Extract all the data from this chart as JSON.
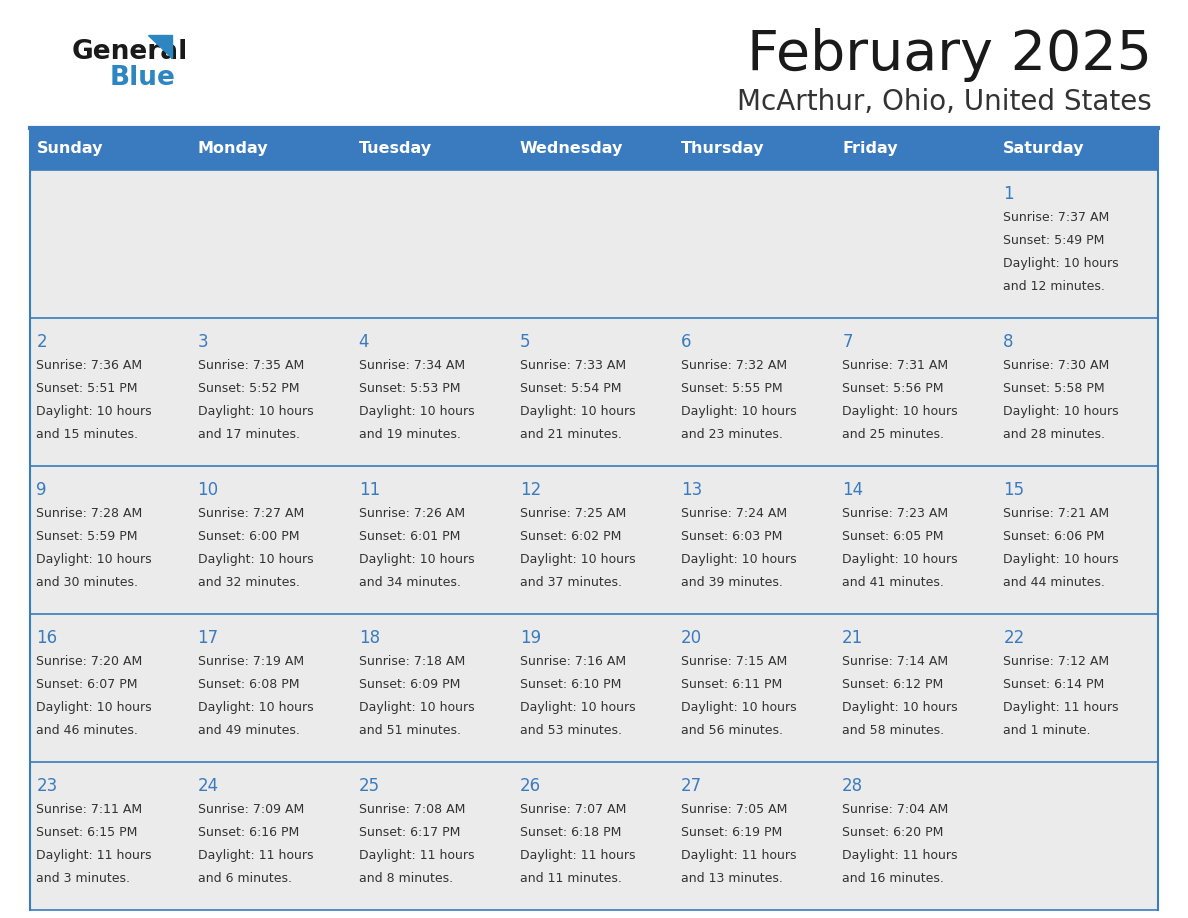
{
  "title": "February 2025",
  "subtitle": "McArthur, Ohio, United States",
  "header_color": "#3a7bbf",
  "header_text_color": "#ffffff",
  "cell_bg_color": "#ebebeb",
  "border_color": "#3a7bbf",
  "day_names": [
    "Sunday",
    "Monday",
    "Tuesday",
    "Wednesday",
    "Thursday",
    "Friday",
    "Saturday"
  ],
  "title_color": "#1a1a1a",
  "subtitle_color": "#333333",
  "day_num_color": "#3a7bbf",
  "cell_text_color": "#333333",
  "logo_general_color": "#1a1a1a",
  "logo_blue_color": "#2e86c1",
  "weeks": [
    [
      null,
      null,
      null,
      null,
      null,
      null,
      {
        "day": "1",
        "sunrise": "7:37 AM",
        "sunset": "5:49 PM",
        "dl1": "Daylight: 10 hours",
        "dl2": "and 12 minutes."
      }
    ],
    [
      {
        "day": "2",
        "sunrise": "7:36 AM",
        "sunset": "5:51 PM",
        "dl1": "Daylight: 10 hours",
        "dl2": "and 15 minutes."
      },
      {
        "day": "3",
        "sunrise": "7:35 AM",
        "sunset": "5:52 PM",
        "dl1": "Daylight: 10 hours",
        "dl2": "and 17 minutes."
      },
      {
        "day": "4",
        "sunrise": "7:34 AM",
        "sunset": "5:53 PM",
        "dl1": "Daylight: 10 hours",
        "dl2": "and 19 minutes."
      },
      {
        "day": "5",
        "sunrise": "7:33 AM",
        "sunset": "5:54 PM",
        "dl1": "Daylight: 10 hours",
        "dl2": "and 21 minutes."
      },
      {
        "day": "6",
        "sunrise": "7:32 AM",
        "sunset": "5:55 PM",
        "dl1": "Daylight: 10 hours",
        "dl2": "and 23 minutes."
      },
      {
        "day": "7",
        "sunrise": "7:31 AM",
        "sunset": "5:56 PM",
        "dl1": "Daylight: 10 hours",
        "dl2": "and 25 minutes."
      },
      {
        "day": "8",
        "sunrise": "7:30 AM",
        "sunset": "5:58 PM",
        "dl1": "Daylight: 10 hours",
        "dl2": "and 28 minutes."
      }
    ],
    [
      {
        "day": "9",
        "sunrise": "7:28 AM",
        "sunset": "5:59 PM",
        "dl1": "Daylight: 10 hours",
        "dl2": "and 30 minutes."
      },
      {
        "day": "10",
        "sunrise": "7:27 AM",
        "sunset": "6:00 PM",
        "dl1": "Daylight: 10 hours",
        "dl2": "and 32 minutes."
      },
      {
        "day": "11",
        "sunrise": "7:26 AM",
        "sunset": "6:01 PM",
        "dl1": "Daylight: 10 hours",
        "dl2": "and 34 minutes."
      },
      {
        "day": "12",
        "sunrise": "7:25 AM",
        "sunset": "6:02 PM",
        "dl1": "Daylight: 10 hours",
        "dl2": "and 37 minutes."
      },
      {
        "day": "13",
        "sunrise": "7:24 AM",
        "sunset": "6:03 PM",
        "dl1": "Daylight: 10 hours",
        "dl2": "and 39 minutes."
      },
      {
        "day": "14",
        "sunrise": "7:23 AM",
        "sunset": "6:05 PM",
        "dl1": "Daylight: 10 hours",
        "dl2": "and 41 minutes."
      },
      {
        "day": "15",
        "sunrise": "7:21 AM",
        "sunset": "6:06 PM",
        "dl1": "Daylight: 10 hours",
        "dl2": "and 44 minutes."
      }
    ],
    [
      {
        "day": "16",
        "sunrise": "7:20 AM",
        "sunset": "6:07 PM",
        "dl1": "Daylight: 10 hours",
        "dl2": "and 46 minutes."
      },
      {
        "day": "17",
        "sunrise": "7:19 AM",
        "sunset": "6:08 PM",
        "dl1": "Daylight: 10 hours",
        "dl2": "and 49 minutes."
      },
      {
        "day": "18",
        "sunrise": "7:18 AM",
        "sunset": "6:09 PM",
        "dl1": "Daylight: 10 hours",
        "dl2": "and 51 minutes."
      },
      {
        "day": "19",
        "sunrise": "7:16 AM",
        "sunset": "6:10 PM",
        "dl1": "Daylight: 10 hours",
        "dl2": "and 53 minutes."
      },
      {
        "day": "20",
        "sunrise": "7:15 AM",
        "sunset": "6:11 PM",
        "dl1": "Daylight: 10 hours",
        "dl2": "and 56 minutes."
      },
      {
        "day": "21",
        "sunrise": "7:14 AM",
        "sunset": "6:12 PM",
        "dl1": "Daylight: 10 hours",
        "dl2": "and 58 minutes."
      },
      {
        "day": "22",
        "sunrise": "7:12 AM",
        "sunset": "6:14 PM",
        "dl1": "Daylight: 11 hours",
        "dl2": "and 1 minute."
      }
    ],
    [
      {
        "day": "23",
        "sunrise": "7:11 AM",
        "sunset": "6:15 PM",
        "dl1": "Daylight: 11 hours",
        "dl2": "and 3 minutes."
      },
      {
        "day": "24",
        "sunrise": "7:09 AM",
        "sunset": "6:16 PM",
        "dl1": "Daylight: 11 hours",
        "dl2": "and 6 minutes."
      },
      {
        "day": "25",
        "sunrise": "7:08 AM",
        "sunset": "6:17 PM",
        "dl1": "Daylight: 11 hours",
        "dl2": "and 8 minutes."
      },
      {
        "day": "26",
        "sunrise": "7:07 AM",
        "sunset": "6:18 PM",
        "dl1": "Daylight: 11 hours",
        "dl2": "and 11 minutes."
      },
      {
        "day": "27",
        "sunrise": "7:05 AM",
        "sunset": "6:19 PM",
        "dl1": "Daylight: 11 hours",
        "dl2": "and 13 minutes."
      },
      {
        "day": "28",
        "sunrise": "7:04 AM",
        "sunset": "6:20 PM",
        "dl1": "Daylight: 11 hours",
        "dl2": "and 16 minutes."
      },
      null
    ]
  ]
}
